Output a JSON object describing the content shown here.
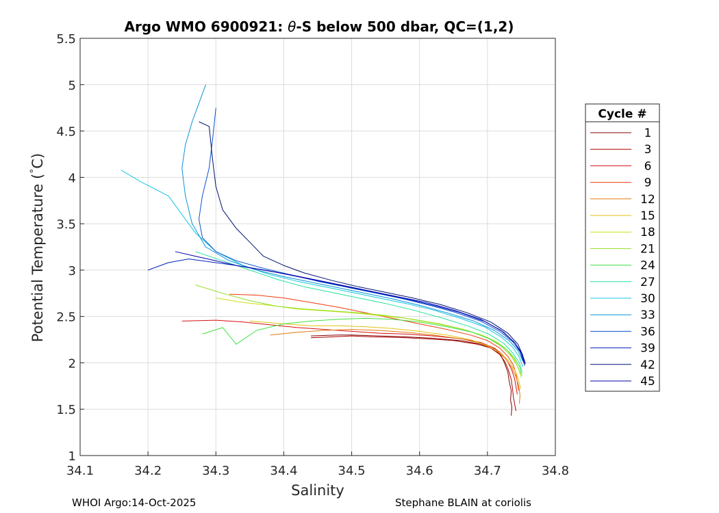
{
  "chart_data": {
    "type": "line",
    "title": "Argo WMO 6900921: θ-S below 500 dbar,  QC=(1,2)",
    "title_parts": {
      "prefix": "Argo WMO 6900921: ",
      "theta": "θ",
      "suffix": "-S below 500 dbar,  QC=(1,2)"
    },
    "xlabel": "Salinity",
    "ylabel": "Potential Temperature (°C)",
    "ylabel_parts": {
      "main": "Potential Temperature (",
      "degree": "°",
      "unit": "C)"
    },
    "xlim": [
      34.1,
      34.8
    ],
    "ylim": [
      1,
      5.5
    ],
    "xticks": [
      34.1,
      34.2,
      34.3,
      34.4,
      34.5,
      34.6,
      34.7,
      34.8
    ],
    "xtick_labels": [
      "34.1",
      "34.2",
      "34.3",
      "34.4",
      "34.5",
      "34.6",
      "34.7",
      "34.8"
    ],
    "yticks": [
      1,
      1.5,
      2,
      2.5,
      3,
      3.5,
      4,
      4.5,
      5,
      5.5
    ],
    "ytick_labels": [
      "1",
      "1.5",
      "2",
      "2.5",
      "3",
      "3.5",
      "4",
      "4.5",
      "5",
      "5.5"
    ],
    "grid": true,
    "legend": {
      "title": "Cycle #",
      "placement": "right-outside",
      "entries": [
        {
          "label": "1",
          "color": "#800000"
        },
        {
          "label": "3",
          "color": "#aa0000"
        },
        {
          "label": "6",
          "color": "#d40f0f"
        },
        {
          "label": "9",
          "color": "#f03a0a"
        },
        {
          "label": "12",
          "color": "#e07a10"
        },
        {
          "label": "15",
          "color": "#e0c010"
        },
        {
          "label": "18",
          "color": "#c8e010"
        },
        {
          "label": "21",
          "color": "#90e020"
        },
        {
          "label": "24",
          "color": "#40e040"
        },
        {
          "label": "27",
          "color": "#20e0a0"
        },
        {
          "label": "30",
          "color": "#10c8e0"
        },
        {
          "label": "33",
          "color": "#0a90d8"
        },
        {
          "label": "36",
          "color": "#0850d0"
        },
        {
          "label": "39",
          "color": "#0020c0"
        },
        {
          "label": "42",
          "color": "#001070"
        },
        {
          "label": "45",
          "color": "#0000a8"
        }
      ]
    },
    "series": [
      {
        "name": "1",
        "color": "#800000",
        "x": [
          34.44,
          34.48,
          34.5,
          34.54,
          34.58,
          34.62,
          34.66,
          34.69,
          34.71,
          34.72,
          34.725,
          34.73,
          34.732,
          34.735,
          34.734,
          34.736,
          34.735
        ],
        "y": [
          2.29,
          2.3,
          2.3,
          2.29,
          2.28,
          2.265,
          2.24,
          2.2,
          2.15,
          2.08,
          2.0,
          1.9,
          1.8,
          1.7,
          1.6,
          1.52,
          1.43
        ]
      },
      {
        "name": "3",
        "color": "#aa0000",
        "x": [
          34.44,
          34.47,
          34.5,
          34.53,
          34.57,
          34.61,
          34.65,
          34.685,
          34.705,
          34.718,
          34.726,
          34.731,
          34.735,
          34.737,
          34.738,
          34.74,
          34.742
        ],
        "y": [
          2.27,
          2.28,
          2.29,
          2.28,
          2.275,
          2.26,
          2.24,
          2.2,
          2.16,
          2.09,
          2.01,
          1.92,
          1.82,
          1.72,
          1.64,
          1.56,
          1.48
        ]
      },
      {
        "name": "6",
        "color": "#d40f0f",
        "x": [
          34.25,
          34.3,
          34.34,
          34.38,
          34.42,
          34.46,
          34.5,
          34.54,
          34.58,
          34.62,
          34.66,
          34.69,
          34.71,
          34.722,
          34.73,
          34.736,
          34.74,
          34.742,
          34.744
        ],
        "y": [
          2.45,
          2.46,
          2.44,
          2.41,
          2.38,
          2.36,
          2.34,
          2.32,
          2.31,
          2.29,
          2.26,
          2.22,
          2.16,
          2.09,
          2.01,
          1.92,
          1.83,
          1.74,
          1.66
        ]
      },
      {
        "name": "9",
        "color": "#f03a0a",
        "x": [
          34.32,
          34.36,
          34.4,
          34.44,
          34.48,
          34.52,
          34.56,
          34.6,
          34.64,
          34.675,
          34.7,
          34.718,
          34.73,
          34.738,
          34.742,
          34.744,
          34.746
        ],
        "y": [
          2.74,
          2.73,
          2.7,
          2.65,
          2.6,
          2.54,
          2.48,
          2.42,
          2.36,
          2.3,
          2.24,
          2.16,
          2.07,
          1.98,
          1.88,
          1.78,
          1.7
        ]
      },
      {
        "name": "12",
        "color": "#e07a10",
        "x": [
          34.38,
          34.42,
          34.46,
          34.5,
          34.54,
          34.58,
          34.62,
          34.66,
          34.69,
          34.712,
          34.726,
          34.736,
          34.742,
          34.746,
          34.748,
          34.747
        ],
        "y": [
          2.3,
          2.33,
          2.35,
          2.36,
          2.35,
          2.33,
          2.3,
          2.26,
          2.21,
          2.14,
          2.05,
          1.95,
          1.85,
          1.75,
          1.65,
          1.56
        ]
      },
      {
        "name": "15",
        "color": "#e0c010",
        "x": [
          34.35,
          34.4,
          34.44,
          34.48,
          34.52,
          34.56,
          34.6,
          34.64,
          34.675,
          34.702,
          34.72,
          34.733,
          34.741,
          34.746,
          34.749
        ],
        "y": [
          2.45,
          2.42,
          2.4,
          2.4,
          2.39,
          2.37,
          2.34,
          2.3,
          2.25,
          2.18,
          2.1,
          2.01,
          1.91,
          1.81,
          1.72
        ]
      },
      {
        "name": "18",
        "color": "#c8e010",
        "x": [
          34.3,
          34.34,
          34.38,
          34.42,
          34.46,
          34.5,
          34.54,
          34.58,
          34.62,
          34.66,
          34.692,
          34.715,
          34.73,
          34.74,
          34.746,
          34.75
        ],
        "y": [
          2.7,
          2.65,
          2.62,
          2.58,
          2.56,
          2.54,
          2.51,
          2.48,
          2.43,
          2.37,
          2.3,
          2.22,
          2.13,
          2.03,
          1.93,
          1.84
        ]
      },
      {
        "name": "21",
        "color": "#90e020",
        "x": [
          34.27,
          34.31,
          34.35,
          34.39,
          34.43,
          34.47,
          34.51,
          34.55,
          34.59,
          34.63,
          34.67,
          34.7,
          34.72,
          34.734,
          34.743,
          34.749
        ],
        "y": [
          2.84,
          2.75,
          2.67,
          2.61,
          2.58,
          2.56,
          2.54,
          2.51,
          2.47,
          2.42,
          2.35,
          2.27,
          2.18,
          2.08,
          1.98,
          1.88
        ]
      },
      {
        "name": "24",
        "color": "#40e040",
        "x": [
          34.28,
          34.31,
          34.33,
          34.36,
          34.4,
          34.44,
          34.48,
          34.52,
          34.56,
          34.6,
          34.64,
          34.678,
          34.706,
          34.726,
          34.739,
          34.747,
          34.751
        ],
        "y": [
          2.31,
          2.38,
          2.2,
          2.35,
          2.42,
          2.45,
          2.47,
          2.48,
          2.47,
          2.44,
          2.39,
          2.33,
          2.25,
          2.16,
          2.06,
          1.96,
          1.86
        ]
      },
      {
        "name": "27",
        "color": "#20e0a0",
        "x": [
          34.27,
          34.31,
          34.35,
          34.39,
          34.43,
          34.47,
          34.51,
          34.55,
          34.59,
          34.63,
          34.67,
          34.702,
          34.724,
          34.738,
          34.747,
          34.751
        ],
        "y": [
          3.2,
          3.1,
          3.0,
          2.9,
          2.82,
          2.76,
          2.7,
          2.64,
          2.57,
          2.49,
          2.4,
          2.31,
          2.21,
          2.1,
          2.0,
          1.9
        ]
      },
      {
        "name": "30",
        "color": "#10c8e0",
        "x": [
          34.16,
          34.19,
          34.23,
          34.25,
          34.27,
          34.3,
          34.34,
          34.38,
          34.42,
          34.46,
          34.5,
          34.54,
          34.58,
          34.62,
          34.66,
          34.695,
          34.72,
          34.737,
          34.747,
          34.752
        ],
        "y": [
          4.08,
          3.95,
          3.8,
          3.6,
          3.4,
          3.2,
          3.05,
          2.95,
          2.88,
          2.82,
          2.76,
          2.7,
          2.64,
          2.57,
          2.48,
          2.39,
          2.28,
          2.17,
          2.06,
          1.96
        ]
      },
      {
        "name": "33",
        "color": "#0a90d8",
        "x": [
          34.285,
          34.275,
          34.265,
          34.255,
          34.25,
          34.255,
          34.265,
          34.285,
          34.32,
          34.36,
          34.4,
          34.44,
          34.48,
          34.52,
          34.56,
          34.6,
          34.64,
          34.68,
          34.71,
          34.732,
          34.745,
          34.752
        ],
        "y": [
          5.0,
          4.8,
          4.6,
          4.35,
          4.1,
          3.8,
          3.5,
          3.25,
          3.1,
          3.0,
          2.93,
          2.87,
          2.81,
          2.75,
          2.69,
          2.62,
          2.54,
          2.45,
          2.35,
          2.24,
          2.13,
          2.02
        ]
      },
      {
        "name": "36",
        "color": "#0850d0",
        "x": [
          34.3,
          34.295,
          34.29,
          34.28,
          34.275,
          34.28,
          34.3,
          34.33,
          34.37,
          34.41,
          34.45,
          34.49,
          34.53,
          34.57,
          34.61,
          34.65,
          34.69,
          34.718,
          34.737,
          34.748,
          34.753
        ],
        "y": [
          4.75,
          4.4,
          4.1,
          3.8,
          3.55,
          3.35,
          3.2,
          3.1,
          3.02,
          2.95,
          2.88,
          2.82,
          2.76,
          2.7,
          2.63,
          2.55,
          2.45,
          2.34,
          2.23,
          2.12,
          2.01
        ]
      },
      {
        "name": "39",
        "color": "#0020c0",
        "x": [
          34.2,
          34.23,
          34.26,
          34.3,
          34.34,
          34.38,
          34.42,
          34.46,
          34.5,
          34.54,
          34.58,
          34.62,
          34.66,
          34.698,
          34.724,
          34.741,
          34.75,
          34.754
        ],
        "y": [
          3.0,
          3.08,
          3.12,
          3.08,
          3.04,
          2.99,
          2.93,
          2.87,
          2.81,
          2.75,
          2.69,
          2.62,
          2.54,
          2.44,
          2.33,
          2.21,
          2.1,
          1.99
        ]
      },
      {
        "name": "42",
        "color": "#001070",
        "x": [
          34.275,
          34.29,
          34.295,
          34.3,
          34.31,
          34.33,
          34.35,
          34.37,
          34.4,
          34.43,
          34.47,
          34.51,
          34.55,
          34.59,
          34.63,
          34.67,
          34.705,
          34.73,
          34.745,
          34.752,
          34.755
        ],
        "y": [
          4.6,
          4.55,
          4.2,
          3.9,
          3.65,
          3.45,
          3.3,
          3.15,
          3.05,
          2.97,
          2.89,
          2.82,
          2.76,
          2.7,
          2.63,
          2.54,
          2.44,
          2.32,
          2.2,
          2.08,
          1.97
        ]
      },
      {
        "name": "45",
        "color": "#0000a8",
        "x": [
          34.24,
          34.27,
          34.3,
          34.33,
          34.37,
          34.41,
          34.45,
          34.49,
          34.53,
          34.57,
          34.61,
          34.65,
          34.69,
          34.72,
          34.74,
          34.751,
          34.756
        ],
        "y": [
          3.2,
          3.15,
          3.1,
          3.05,
          3.0,
          2.95,
          2.89,
          2.83,
          2.77,
          2.71,
          2.65,
          2.57,
          2.47,
          2.35,
          2.22,
          2.1,
          1.99
        ]
      }
    ]
  },
  "footer": {
    "left": "WHOI Argo:14-Oct-2025",
    "right": "Stephane BLAIN at coriolis"
  }
}
